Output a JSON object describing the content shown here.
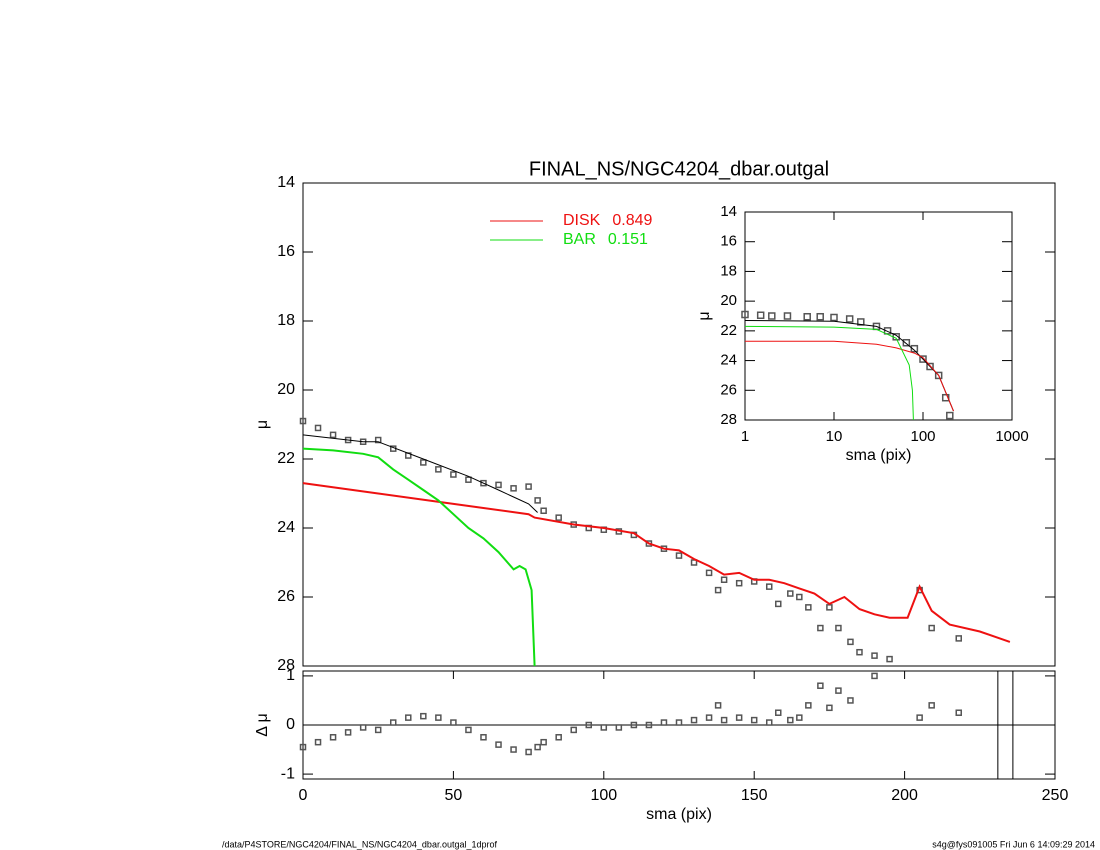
{
  "chart_data": [
    {
      "type": "line",
      "title": "FINAL_NS/NGC4204_dbar.outgal",
      "ylabel": "μ",
      "xlim": [
        0,
        250
      ],
      "ylim": [
        28,
        14
      ],
      "yticks": [
        14,
        16,
        18,
        20,
        22,
        24,
        26,
        28
      ],
      "legend": "top",
      "series": [
        {
          "color": "#555555",
          "marker": "square",
          "x": [
            0,
            5,
            10,
            15,
            20,
            25,
            30,
            35,
            40,
            45,
            50,
            55,
            60,
            65,
            70,
            75,
            78,
            80,
            85,
            90,
            95,
            100,
            105,
            110,
            115,
            120,
            125,
            130,
            135,
            138,
            140,
            145,
            150,
            155,
            158,
            162,
            165,
            168,
            172,
            175,
            178,
            182,
            185,
            190,
            195,
            205,
            209,
            218
          ],
          "values": [
            20.9,
            21.1,
            21.3,
            21.45,
            21.5,
            21.45,
            21.7,
            21.9,
            22.1,
            22.3,
            22.45,
            22.6,
            22.7,
            22.75,
            22.85,
            22.8,
            23.2,
            23.5,
            23.7,
            23.9,
            24.0,
            24.05,
            24.1,
            24.2,
            24.45,
            24.6,
            24.8,
            25.0,
            25.3,
            25.8,
            25.5,
            25.6,
            25.55,
            25.7,
            26.2,
            25.9,
            26.0,
            26.3,
            26.9,
            26.3,
            26.9,
            27.3,
            27.6,
            27.7,
            27.8,
            25.8,
            26.9,
            27.2
          ]
        },
        {
          "color": "#000000",
          "x": [
            0,
            20,
            25,
            40,
            55,
            65,
            70,
            75,
            78
          ],
          "values": [
            21.3,
            21.5,
            21.5,
            22.0,
            22.5,
            22.9,
            23.1,
            23.3,
            23.55
          ]
        },
        {
          "name": "DISK",
          "fraction": 0.849,
          "color": "#ee1111",
          "x": [
            0,
            25,
            50,
            75,
            77,
            90,
            100,
            110,
            115,
            120,
            125,
            130,
            135,
            140,
            145,
            150,
            155,
            160,
            165,
            170,
            175,
            180,
            185,
            190,
            195,
            201,
            205,
            209,
            215,
            225,
            235
          ],
          "values": [
            22.7,
            23.0,
            23.3,
            23.6,
            23.7,
            23.9,
            24.0,
            24.15,
            24.45,
            24.6,
            24.65,
            24.9,
            25.1,
            25.35,
            25.3,
            25.5,
            25.5,
            25.6,
            25.75,
            25.9,
            26.2,
            26.0,
            26.35,
            26.5,
            26.6,
            26.6,
            25.7,
            26.4,
            26.8,
            27.0,
            27.3
          ]
        },
        {
          "name": "BAR",
          "fraction": 0.151,
          "color": "#11dd11",
          "x": [
            0,
            10,
            20,
            25,
            30,
            35,
            40,
            45,
            50,
            55,
            60,
            65,
            70,
            72,
            74,
            76,
            77
          ],
          "values": [
            21.7,
            21.75,
            21.85,
            21.95,
            22.3,
            22.6,
            22.9,
            23.2,
            23.6,
            24.0,
            24.3,
            24.7,
            25.2,
            25.1,
            25.2,
            25.8,
            28
          ]
        }
      ]
    },
    {
      "type": "scatter",
      "ylabel": "Δ μ",
      "xlabel": "sma (pix)",
      "xlim": [
        0,
        250
      ],
      "ylim": [
        -1.1,
        1.1
      ],
      "xticks": [
        0,
        50,
        100,
        150,
        200,
        250
      ],
      "yticks": [
        -1,
        0,
        1
      ],
      "hlines": [
        0
      ],
      "vlines": [
        231,
        236
      ],
      "series": [
        {
          "color": "#555555",
          "marker": "square",
          "x": [
            0,
            5,
            10,
            15,
            20,
            25,
            30,
            35,
            40,
            45,
            50,
            55,
            60,
            65,
            70,
            75,
            78,
            80,
            85,
            90,
            95,
            100,
            105,
            110,
            115,
            120,
            125,
            130,
            135,
            138,
            140,
            145,
            150,
            155,
            158,
            162,
            165,
            168,
            172,
            175,
            178,
            182,
            190,
            205,
            209,
            218
          ],
          "values": [
            -0.45,
            -0.35,
            -0.25,
            -0.15,
            -0.05,
            -0.1,
            0.05,
            0.15,
            0.18,
            0.15,
            0.05,
            -0.1,
            -0.25,
            -0.4,
            -0.5,
            -0.55,
            -0.45,
            -0.35,
            -0.25,
            -0.1,
            0.0,
            -0.05,
            -0.05,
            0.0,
            0.0,
            0.05,
            0.05,
            0.1,
            0.15,
            0.4,
            0.1,
            0.15,
            0.1,
            0.05,
            0.25,
            0.1,
            0.15,
            0.4,
            0.8,
            0.35,
            0.7,
            0.5,
            1.0,
            0.15,
            0.4,
            0.25
          ]
        }
      ]
    },
    {
      "type": "line",
      "ylabel": "μ",
      "xlabel": "sma (pix)",
      "xlog": true,
      "xlim": [
        1,
        1000
      ],
      "ylim": [
        28,
        14
      ],
      "xticks": [
        1,
        10,
        100,
        1000
      ],
      "yticks": [
        14,
        16,
        18,
        20,
        22,
        24,
        26,
        28
      ],
      "series": [
        {
          "color": "#555555",
          "marker": "square",
          "x": [
            1,
            1.5,
            2,
            3,
            5,
            7,
            10,
            15,
            20,
            30,
            40,
            50,
            65,
            80,
            100,
            120,
            150,
            180,
            200
          ],
          "values": [
            20.9,
            20.95,
            21.0,
            21.0,
            21.05,
            21.05,
            21.1,
            21.2,
            21.4,
            21.7,
            22.0,
            22.4,
            22.8,
            23.2,
            23.9,
            24.4,
            25.0,
            26.5,
            27.7
          ]
        },
        {
          "color": "#000000",
          "x": [
            1,
            10,
            30,
            50,
            80,
            100,
            150,
            220
          ],
          "values": [
            21.3,
            21.35,
            21.7,
            22.3,
            23.3,
            23.9,
            25.0,
            27.4
          ]
        },
        {
          "color": "#ee1111",
          "x": [
            1,
            10,
            30,
            50,
            80,
            100,
            150,
            220
          ],
          "values": [
            22.7,
            22.7,
            22.9,
            23.15,
            23.5,
            23.8,
            25.0,
            27.4
          ]
        },
        {
          "color": "#11dd11",
          "x": [
            1,
            10,
            30,
            50,
            70,
            76,
            78
          ],
          "values": [
            21.7,
            21.75,
            21.9,
            22.5,
            24.3,
            26,
            28
          ]
        }
      ]
    }
  ],
  "footer": {
    "left": "/data/P4STORE/NGC4204/FINAL_NS/NGC4204_dbar.outgal_1dprof",
    "right": "s4g@fys091005  Fri Jun  6 14:09:29 2014"
  }
}
